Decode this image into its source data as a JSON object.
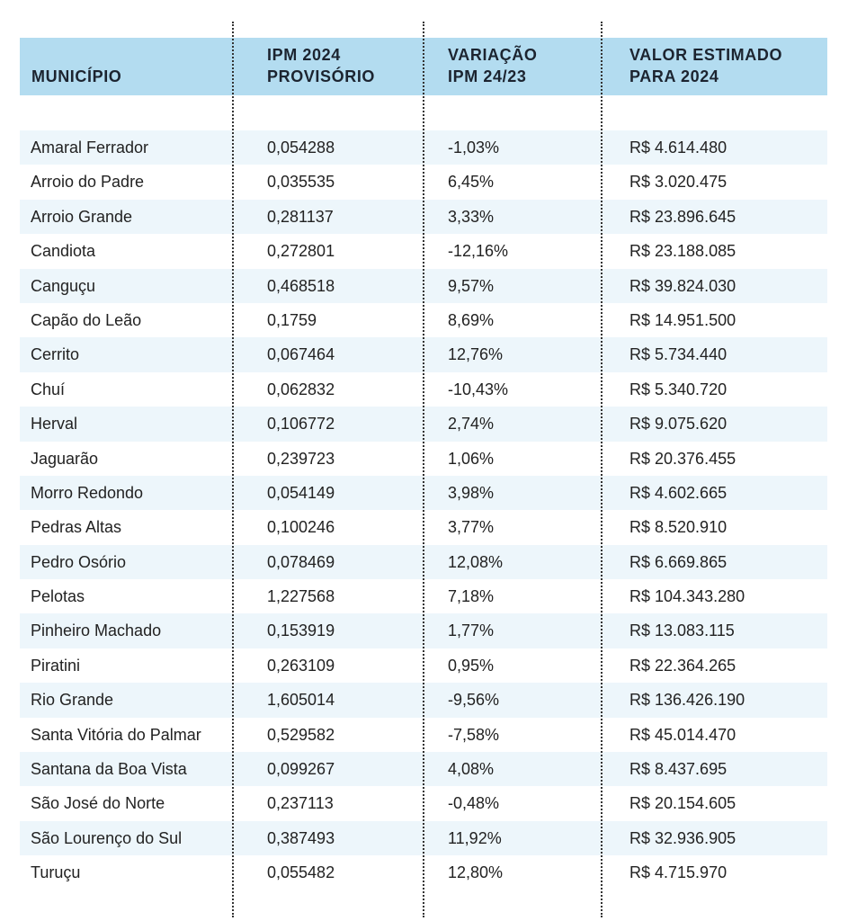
{
  "colors": {
    "header_bg": "#b3dcf0",
    "stripe_bg": "#edf6fb",
    "divider": "#333333"
  },
  "table": {
    "headers": [
      [
        "MUNICÍPIO"
      ],
      [
        "IPM 2024",
        "PROVISÓRIO"
      ],
      [
        "VARIAÇÃO",
        "IPM 24/23"
      ],
      [
        "VALOR ESTIMADO",
        "PARA 2024"
      ]
    ],
    "rows": [
      [
        "Amaral Ferrador",
        "0,054288",
        "-1,03%",
        "R$ 4.614.480"
      ],
      [
        "Arroio do Padre",
        "0,035535",
        "6,45%",
        "R$ 3.020.475"
      ],
      [
        "Arroio Grande",
        "0,281137",
        "3,33%",
        "R$ 23.896.645"
      ],
      [
        "Candiota",
        "0,272801",
        "-12,16%",
        "R$ 23.188.085"
      ],
      [
        "Canguçu",
        "0,468518",
        "9,57%",
        "R$ 39.824.030"
      ],
      [
        "Capão do Leão",
        "0,1759",
        "8,69%",
        "R$ 14.951.500"
      ],
      [
        "Cerrito",
        "0,067464",
        "12,76%",
        "R$ 5.734.440"
      ],
      [
        "Chuí",
        "0,062832",
        "-10,43%",
        "R$ 5.340.720"
      ],
      [
        "Herval",
        "0,106772",
        "2,74%",
        "R$ 9.075.620"
      ],
      [
        "Jaguarão",
        "0,239723",
        "1,06%",
        "R$ 20.376.455"
      ],
      [
        "Morro Redondo",
        "0,054149",
        "3,98%",
        "R$ 4.602.665"
      ],
      [
        "Pedras Altas",
        "0,100246",
        "3,77%",
        "R$ 8.520.910"
      ],
      [
        "Pedro Osório",
        "0,078469",
        "12,08%",
        "R$ 6.669.865"
      ],
      [
        "Pelotas",
        "1,227568",
        "7,18%",
        "R$ 104.343.280"
      ],
      [
        "Pinheiro Machado",
        "0,153919",
        "1,77%",
        "R$ 13.083.115"
      ],
      [
        "Piratini",
        "0,263109",
        "0,95%",
        "R$ 22.364.265"
      ],
      [
        "Rio Grande",
        "1,605014",
        "-9,56%",
        "R$ 136.426.190"
      ],
      [
        "Santa Vitória do Palmar",
        "0,529582",
        "-7,58%",
        "R$ 45.014.470"
      ],
      [
        "Santana da Boa Vista",
        "0,099267",
        "4,08%",
        "R$ 8.437.695"
      ],
      [
        "São José do Norte",
        "0,237113",
        "-0,48%",
        "R$ 20.154.605"
      ],
      [
        "São Lourenço do Sul",
        "0,387493",
        "11,92%",
        "R$ 32.936.905"
      ],
      [
        "Turuçu",
        "0,055482",
        "12,80%",
        "R$ 4.715.970"
      ]
    ]
  }
}
